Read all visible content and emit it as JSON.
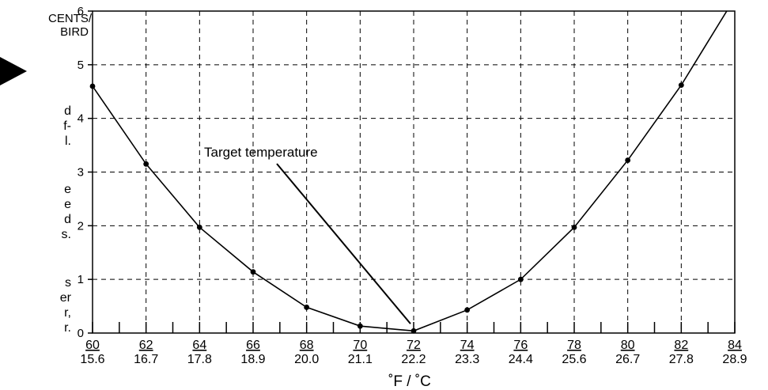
{
  "sidebar": {
    "lines_a": [
      "d",
      "f-",
      "l."
    ],
    "lines_b": [
      "e",
      "e",
      "d",
      "s."
    ],
    "lines_c": [
      "s",
      "er",
      "r,",
      "r."
    ]
  },
  "chart_data": {
    "type": "line",
    "ylabel_lines": [
      "CENTS/",
      "BIRD"
    ],
    "xlabel": "˚F / ˚C",
    "x_ticks_f": [
      "60",
      "62",
      "64",
      "66",
      "68",
      "70",
      "72",
      "74",
      "76",
      "78",
      "80",
      "82",
      "84"
    ],
    "x_ticks_c": [
      "15.6",
      "16.7",
      "17.8",
      "18.9",
      "20.0",
      "21.1",
      "22.2",
      "23.3",
      "24.4",
      "25.6",
      "26.7",
      "27.8",
      "28.9"
    ],
    "y_ticks": [
      "0",
      "1",
      "2",
      "3",
      "4",
      "5",
      "6"
    ],
    "xlim": [
      60,
      84
    ],
    "ylim": [
      0,
      6
    ],
    "grid": true,
    "series": [
      {
        "x": [
          60,
          62,
          64,
          66,
          68,
          70,
          72,
          74,
          76,
          78,
          80,
          82,
          83.7
        ],
        "y": [
          4.6,
          3.15,
          1.97,
          1.14,
          0.48,
          0.13,
          0.04,
          0.43,
          1.0,
          1.97,
          3.22,
          4.62,
          6.0
        ],
        "markers": [
          true,
          true,
          true,
          true,
          true,
          true,
          true,
          true,
          true,
          true,
          true,
          true,
          false
        ]
      }
    ],
    "annotation": {
      "text": "Target temperature",
      "points_to": {
        "x": 72,
        "y": 0.04
      }
    },
    "colors": {
      "line": "#000000",
      "grid": "#000000",
      "background": "#ffffff"
    }
  }
}
